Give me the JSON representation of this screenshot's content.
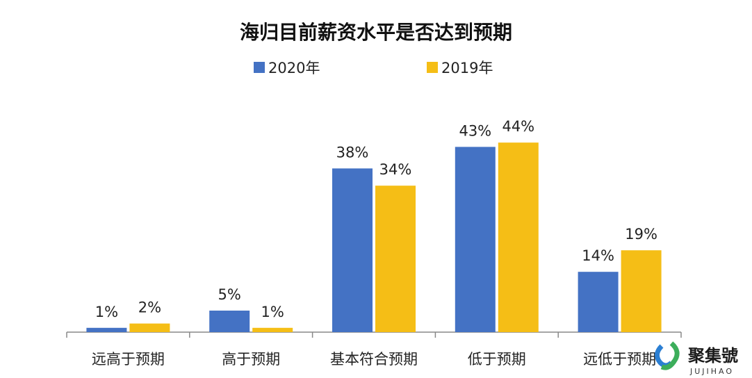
{
  "chart_data": {
    "type": "bar",
    "title": "海归目前薪资水平是否达到预期",
    "categories": [
      "远高于预期",
      "高于预期",
      "基本符合预期",
      "低于预期",
      "远低于预期"
    ],
    "series": [
      {
        "name": "2020年",
        "color": "#4472c4",
        "values": [
          1,
          5,
          38,
          43,
          14
        ],
        "labels": [
          "1%",
          "5%",
          "38%",
          "43%",
          "14%"
        ]
      },
      {
        "name": "2019年",
        "color": "#f5be16",
        "values": [
          2,
          1,
          34,
          44,
          19
        ],
        "labels": [
          "2%",
          "1%",
          "34%",
          "44%",
          "19%"
        ]
      }
    ],
    "xlabel": "",
    "ylabel": "",
    "ylim": [
      0,
      50
    ],
    "grid": false,
    "legend_position": "top-center",
    "axis_color": "#888888"
  },
  "watermark": {
    "name": "聚集號",
    "sub": "JUJIHAO",
    "icon": "jujihao-logo-icon",
    "colors": [
      "#2b7fd3",
      "#3cae5b"
    ]
  }
}
